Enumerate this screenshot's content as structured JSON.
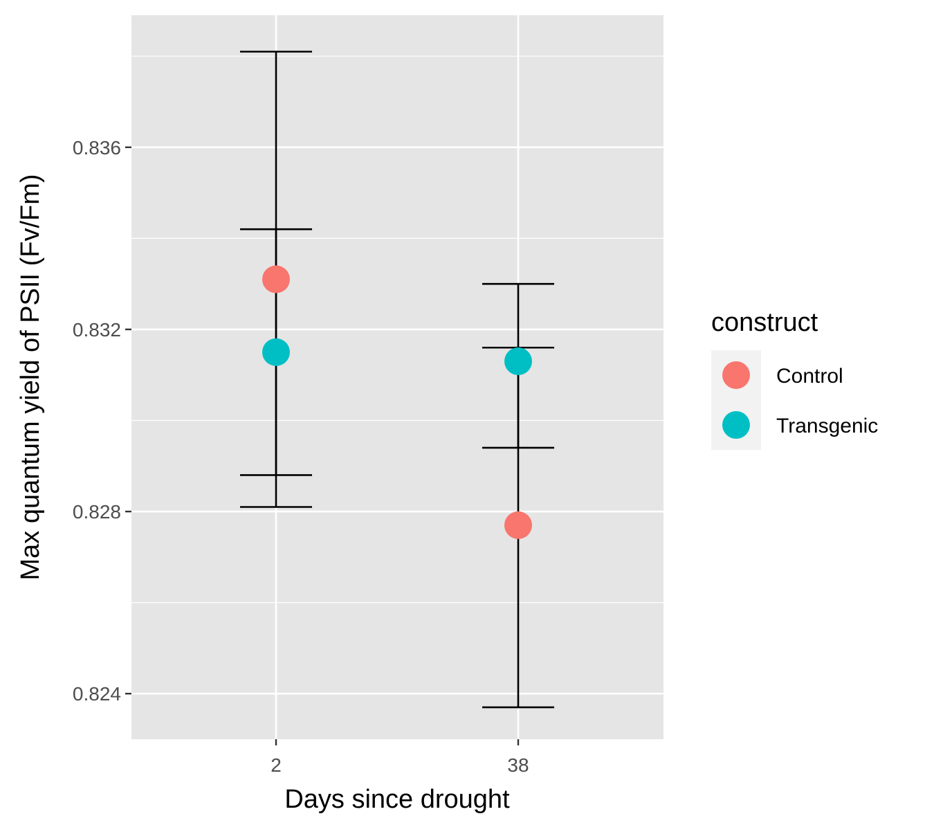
{
  "chart_data": {
    "type": "scatter",
    "title": "",
    "xlabel": "Days since drought",
    "ylabel": "Max quantum yield of PSII (Fv/Fm)",
    "categories": [
      "2",
      "38"
    ],
    "ylim": [
      0.823,
      0.8389
    ],
    "y_ticks": [
      0.824,
      0.828,
      0.832,
      0.836
    ],
    "y_tick_labels": [
      "0.824",
      "0.828",
      "0.832",
      "0.836"
    ],
    "grid": true,
    "legend": {
      "title": "construct",
      "position": "right"
    },
    "series": [
      {
        "name": "Control",
        "color": "#F8766D",
        "values": [
          0.8331,
          0.8277
        ],
        "error_low": [
          0.8281,
          0.8237
        ],
        "error_high": [
          0.8381,
          0.833
        ]
      },
      {
        "name": "Transgenic",
        "color": "#00BFC4",
        "values": [
          0.8315,
          0.8313
        ],
        "error_low": [
          0.8288,
          0.8294
        ],
        "error_high": [
          0.8342,
          0.8316
        ]
      }
    ]
  },
  "style": {
    "panel_background": "#E5E5E5",
    "grid_color": "#FFFFFF",
    "errorbar_color": "#000000",
    "legend_key_background": "#F2F2F2"
  }
}
